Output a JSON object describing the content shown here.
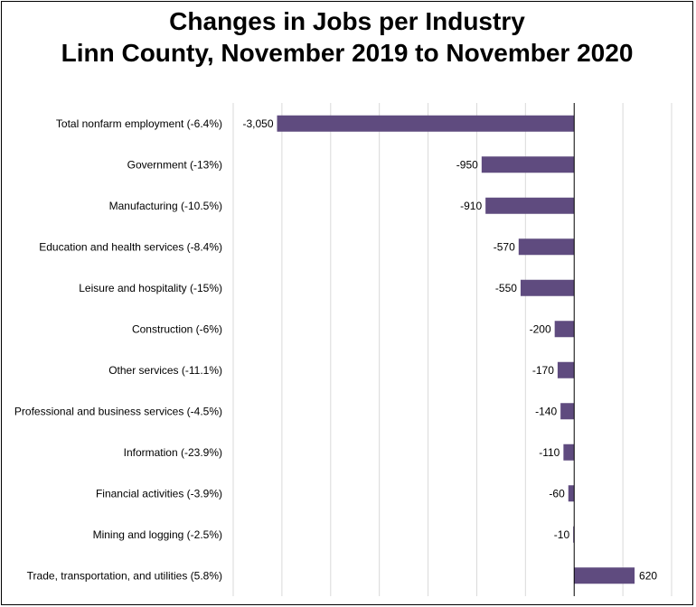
{
  "chart_data": {
    "type": "bar",
    "orientation": "horizontal",
    "title": "Changes in Jobs per Industry",
    "subtitle": "Linn County, November 2019 to November 2020",
    "categories": [
      "Total nonfarm employment (-6.4%)",
      "Government (-13%)",
      "Manufacturing (-10.5%)",
      "Education and health services (-8.4%)",
      "Leisure and hospitality (-15%)",
      "Construction (-6%)",
      "Other services (-11.1%)",
      "Professional and business services (-4.5%)",
      "Information (-23.9%)",
      "Financial activities (-3.9%)",
      "Mining and logging (-2.5%)",
      "Trade, transportation, and utilities (5.8%)"
    ],
    "values": [
      -3050,
      -950,
      -910,
      -570,
      -550,
      -200,
      -170,
      -140,
      -110,
      -60,
      -10,
      620
    ],
    "data_labels": [
      "-3,050",
      "-950",
      "-910",
      "-570",
      "-550",
      "-200",
      "-170",
      "-140",
      "-110",
      "-60",
      "-10",
      "620"
    ],
    "xlim": [
      -3500,
      1000
    ],
    "grid": true,
    "bar_color": "#5f4b7f",
    "grid_color": "#d9d9d9"
  }
}
